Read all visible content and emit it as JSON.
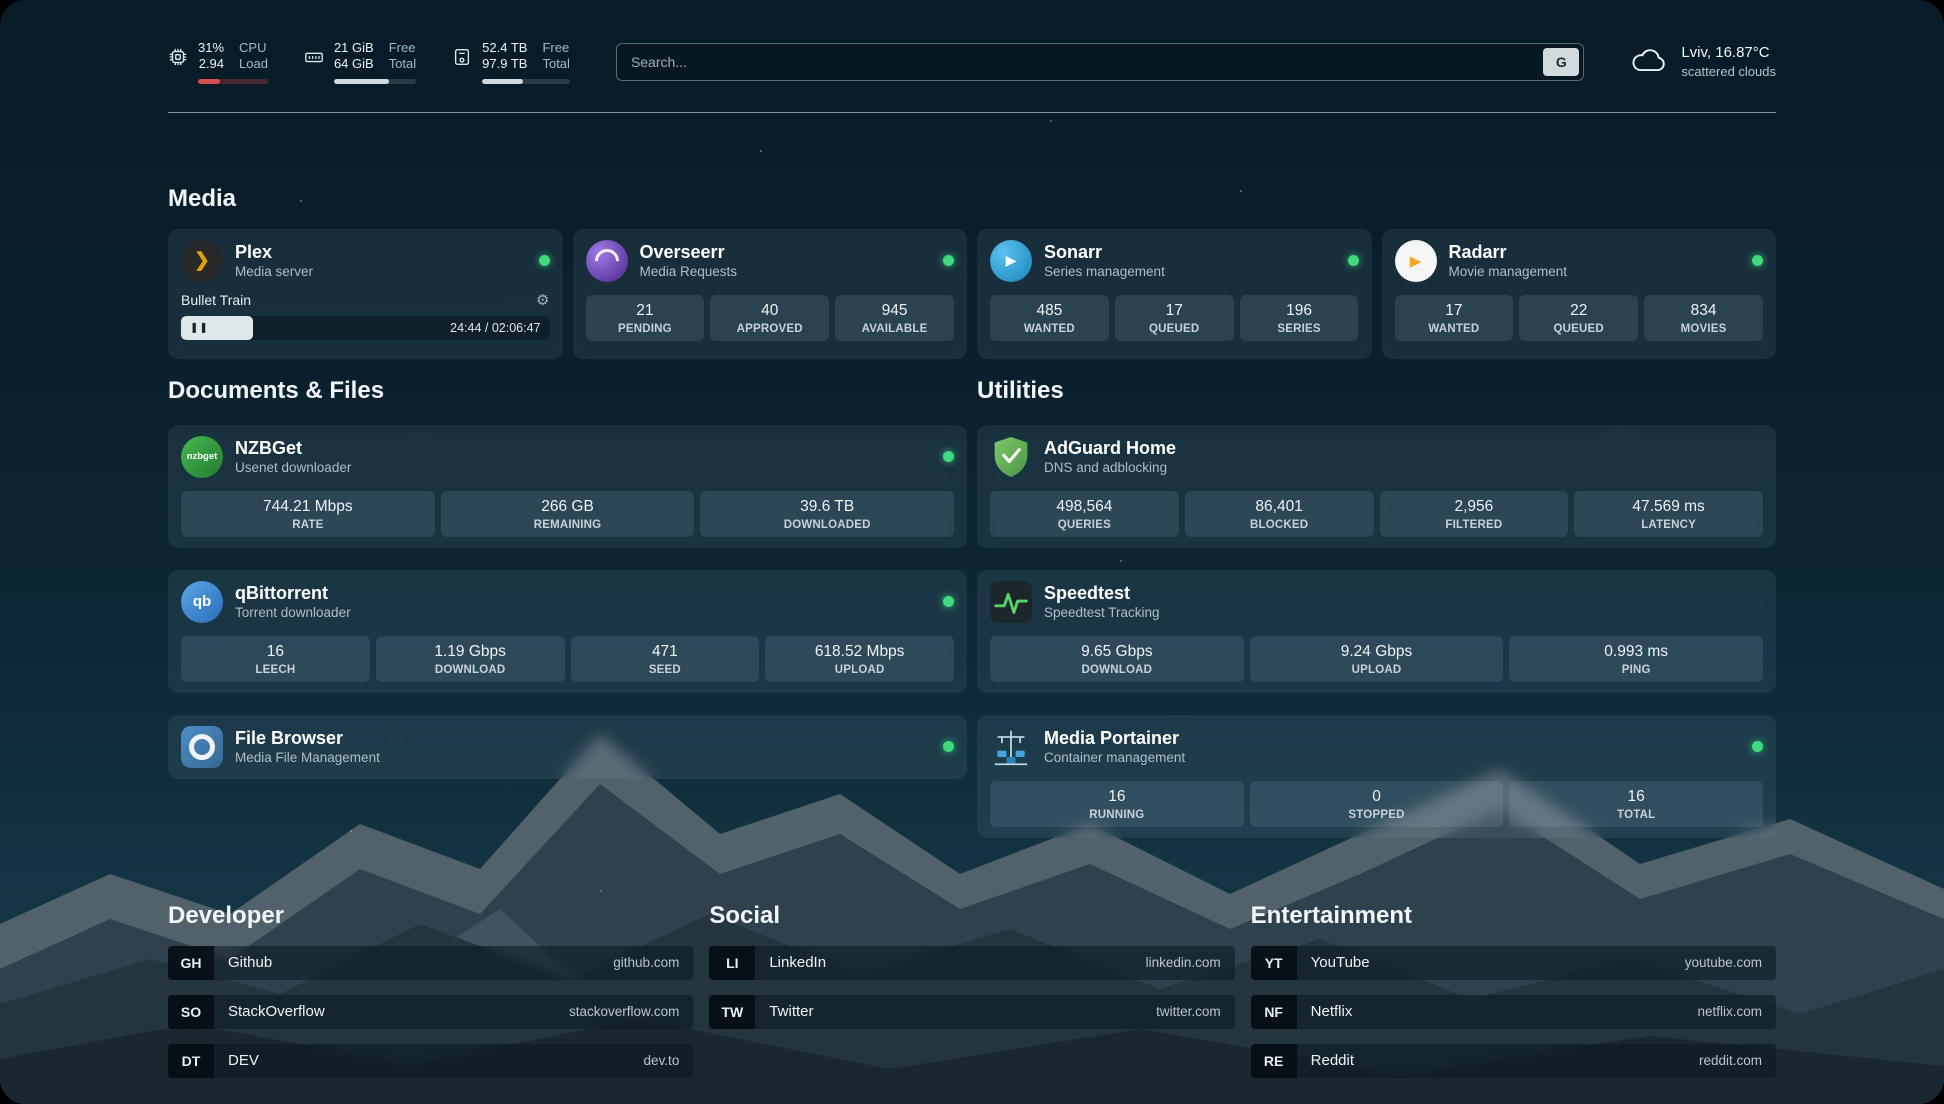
{
  "colors": {
    "status_online_green": "#3fd97f",
    "cpu_bar_red": "#d25050",
    "meter_bar_light": "#cfd9de",
    "plex_amber": "#e5a00d"
  },
  "icons": {
    "plex_glyph": "❯",
    "sonarr_glyph": "▶",
    "radarr_glyph": "▶",
    "pause_glyph": "❚❚",
    "gear_glyph": "⚙"
  },
  "topbar": {
    "cpu": {
      "value_top": "31%",
      "value_bottom": "2.94",
      "label_top": "CPU",
      "label_bottom": "Load",
      "percent": 31
    },
    "memory": {
      "value_top": "21 GiB",
      "value_bottom": "64 GiB",
      "label_top": "Free",
      "label_bottom": "Total",
      "percent": 67
    },
    "disk": {
      "value_top": "52.4 TB",
      "value_bottom": "97.9 TB",
      "label_top": "Free",
      "label_bottom": "Total",
      "percent": 46
    },
    "search": {
      "placeholder": "Search...",
      "button_label": "G"
    },
    "weather": {
      "location": "Lviv, 16.87°C",
      "condition": "scattered clouds"
    }
  },
  "sections": {
    "media": {
      "title": "Media",
      "plex": {
        "name": "Plex",
        "subtitle": "Media server",
        "now_playing": {
          "title": "Bullet Train",
          "time": "24:44 / 02:06:47",
          "progress_percent": 19.5
        }
      },
      "overseerr": {
        "name": "Overseerr",
        "subtitle": "Media Requests",
        "stats": [
          {
            "value": "21",
            "label": "PENDING"
          },
          {
            "value": "40",
            "label": "APPROVED"
          },
          {
            "value": "945",
            "label": "AVAILABLE"
          }
        ]
      },
      "sonarr": {
        "name": "Sonarr",
        "subtitle": "Series management",
        "stats": [
          {
            "value": "485",
            "label": "WANTED"
          },
          {
            "value": "17",
            "label": "QUEUED"
          },
          {
            "value": "196",
            "label": "SERIES"
          }
        ]
      },
      "radarr": {
        "name": "Radarr",
        "subtitle": "Movie management",
        "stats": [
          {
            "value": "17",
            "label": "WANTED"
          },
          {
            "value": "22",
            "label": "QUEUED"
          },
          {
            "value": "834",
            "label": "MOVIES"
          }
        ]
      }
    },
    "documents": {
      "title": "Documents & Files",
      "nzbget": {
        "name": "NZBGet",
        "subtitle": "Usenet downloader",
        "icon_text": "nzbget",
        "stats": [
          {
            "value": "744.21 Mbps",
            "label": "RATE"
          },
          {
            "value": "266 GB",
            "label": "REMAINING"
          },
          {
            "value": "39.6 TB",
            "label": "DOWNLOADED"
          }
        ]
      },
      "qbittorrent": {
        "name": "qBittorrent",
        "subtitle": "Torrent downloader",
        "icon_text": "qb",
        "stats": [
          {
            "value": "16",
            "label": "LEECH"
          },
          {
            "value": "1.19 Gbps",
            "label": "DOWNLOAD"
          },
          {
            "value": "471",
            "label": "SEED"
          },
          {
            "value": "618.52 Mbps",
            "label": "UPLOAD"
          }
        ]
      },
      "filebrowser": {
        "name": "File Browser",
        "subtitle": "Media File Management"
      }
    },
    "utilities": {
      "title": "Utilities",
      "adguard": {
        "name": "AdGuard Home",
        "subtitle": "DNS and adblocking",
        "stats": [
          {
            "value": "498,564",
            "label": "QUERIES"
          },
          {
            "value": "86,401",
            "label": "BLOCKED"
          },
          {
            "value": "2,956",
            "label": "FILTERED"
          },
          {
            "value": "47.569 ms",
            "label": "LATENCY"
          }
        ]
      },
      "speedtest": {
        "name": "Speedtest",
        "subtitle": "Speedtest Tracking",
        "stats": [
          {
            "value": "9.65 Gbps",
            "label": "DOWNLOAD"
          },
          {
            "value": "9.24 Gbps",
            "label": "UPLOAD"
          },
          {
            "value": "0.993 ms",
            "label": "PING"
          }
        ]
      },
      "portainer": {
        "name": "Media Portainer",
        "subtitle": "Container management",
        "stats": [
          {
            "value": "16",
            "label": "RUNNING"
          },
          {
            "value": "0",
            "label": "STOPPED"
          },
          {
            "value": "16",
            "label": "TOTAL"
          }
        ]
      }
    },
    "bookmarks": {
      "developer": {
        "title": "Developer",
        "items": [
          {
            "abbr": "GH",
            "name": "Github",
            "domain": "github.com"
          },
          {
            "abbr": "SO",
            "name": "StackOverflow",
            "domain": "stackoverflow.com"
          },
          {
            "abbr": "DT",
            "name": "DEV",
            "domain": "dev.to"
          }
        ]
      },
      "social": {
        "title": "Social",
        "items": [
          {
            "abbr": "LI",
            "name": "LinkedIn",
            "domain": "linkedin.com"
          },
          {
            "abbr": "TW",
            "name": "Twitter",
            "domain": "twitter.com"
          }
        ]
      },
      "entertainment": {
        "title": "Entertainment",
        "items": [
          {
            "abbr": "YT",
            "name": "YouTube",
            "domain": "youtube.com"
          },
          {
            "abbr": "NF",
            "name": "Netflix",
            "domain": "netflix.com"
          },
          {
            "abbr": "RE",
            "name": "Reddit",
            "domain": "reddit.com"
          }
        ]
      }
    }
  }
}
